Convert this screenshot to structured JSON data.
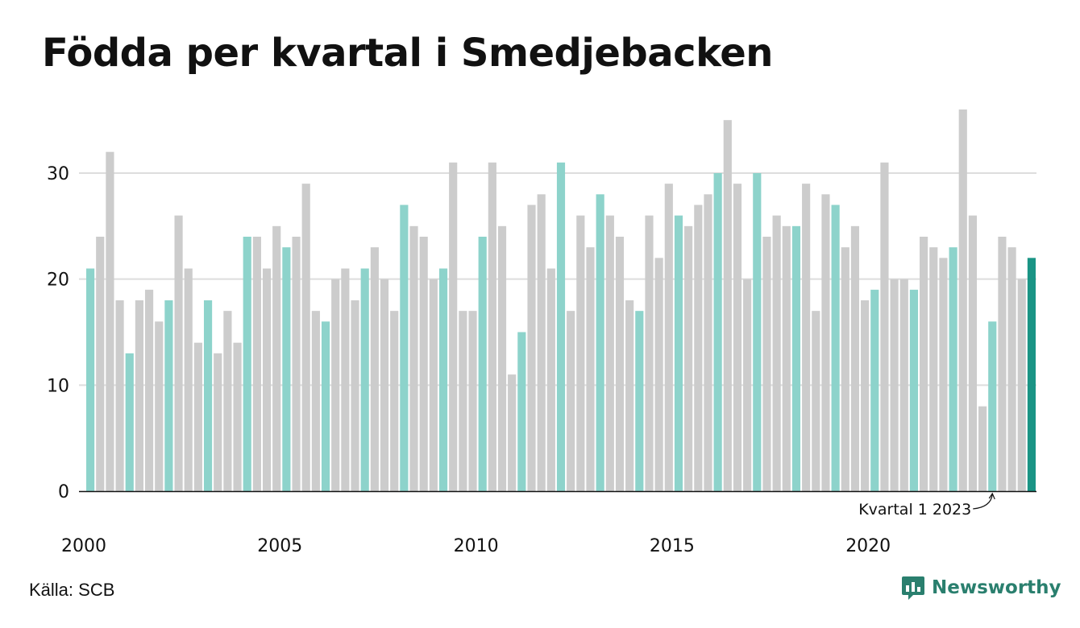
{
  "title": "Födda per kvartal i Smedjebacken",
  "source": "Källa: SCB",
  "brand": "Newsworthy",
  "colors": {
    "highlight": "#8dd3cb",
    "default": "#cccccc",
    "latest": "#1a9485",
    "grid": "#dddddd",
    "axis": "#111111",
    "brand": "#2a7f6e"
  },
  "chart_data": {
    "type": "bar",
    "title": "Födda per kvartal i Smedjebacken",
    "x_tick_labels": [
      "2000",
      "2005",
      "2010",
      "2015",
      "2020"
    ],
    "y_ticks": [
      0,
      10,
      20,
      30
    ],
    "ylim": [
      0,
      36
    ],
    "grid": true,
    "highlight_quarter": 1,
    "annotation": "Kvartal 1 2023",
    "start_year": 2000,
    "values": [
      21,
      24,
      32,
      18,
      13,
      18,
      19,
      16,
      18,
      26,
      21,
      14,
      18,
      13,
      17,
      14,
      24,
      24,
      21,
      25,
      23,
      24,
      29,
      17,
      16,
      20,
      21,
      18,
      21,
      23,
      20,
      17,
      27,
      25,
      24,
      20,
      21,
      31,
      17,
      17,
      24,
      31,
      25,
      11,
      15,
      27,
      28,
      21,
      31,
      17,
      26,
      23,
      28,
      26,
      24,
      18,
      17,
      26,
      22,
      29,
      26,
      25,
      27,
      28,
      30,
      35,
      29,
      20,
      30,
      24,
      26,
      25,
      25,
      29,
      17,
      28,
      27,
      23,
      25,
      18,
      19,
      31,
      20,
      20,
      19,
      24,
      23,
      22,
      23,
      36,
      26,
      8,
      16,
      24,
      23,
      20,
      22
    ]
  }
}
